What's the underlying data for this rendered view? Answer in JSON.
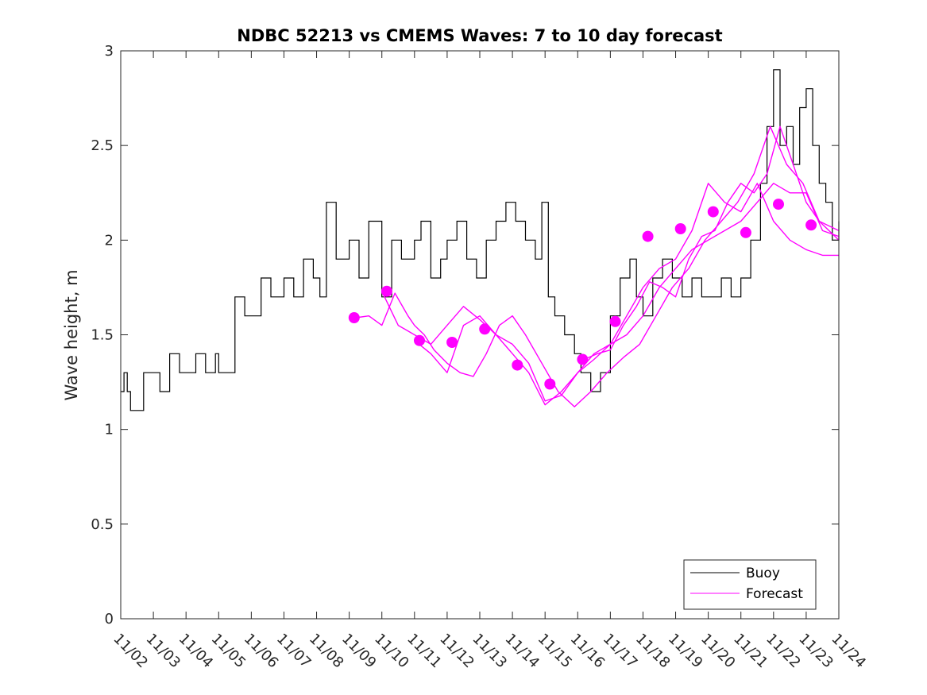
{
  "chart_data": {
    "type": "line",
    "title": "NDBC 52213 vs CMEMS Waves: 7 to 10 day forecast",
    "xlabel": "",
    "ylabel": "Wave height, m",
    "xlim": [
      0,
      22
    ],
    "ylim": [
      0,
      3
    ],
    "grid": false,
    "legend_position": "bottom-right",
    "x_tick_labels": [
      "11/02",
      "11/03",
      "11/04",
      "11/05",
      "11/06",
      "11/07",
      "11/08",
      "11/09",
      "11/10",
      "11/11",
      "11/12",
      "11/13",
      "11/14",
      "11/15",
      "11/16",
      "11/17",
      "11/18",
      "11/19",
      "11/20",
      "11/21",
      "11/22",
      "11/23",
      "11/24"
    ],
    "y_ticks": [
      0,
      0.5,
      1,
      1.5,
      2,
      2.5,
      3
    ],
    "y_tick_labels": [
      "0",
      "0.5",
      "1",
      "1.5",
      "2",
      "2.5",
      "3"
    ],
    "colors": {
      "buoy": "#000000",
      "forecast": "#ff00ff"
    },
    "series": [
      {
        "name": "Buoy",
        "color": "#000000",
        "x": [
          0,
          0.1,
          0.2,
          0.3,
          0.5,
          0.7,
          1.0,
          1.2,
          1.5,
          1.8,
          2.0,
          2.3,
          2.6,
          2.9,
          3.0,
          3.2,
          3.5,
          3.8,
          4.0,
          4.3,
          4.6,
          5.0,
          5.3,
          5.6,
          5.9,
          6.1,
          6.3,
          6.6,
          7.0,
          7.3,
          7.6,
          8.0,
          8.3,
          8.6,
          9.0,
          9.2,
          9.5,
          9.8,
          10.0,
          10.3,
          10.6,
          10.9,
          11.2,
          11.5,
          11.8,
          12.1,
          12.4,
          12.7,
          12.9,
          13.1,
          13.3,
          13.6,
          13.9,
          14.1,
          14.4,
          14.7,
          14.9,
          15.0,
          15.3,
          15.6,
          15.8,
          16.0,
          16.3,
          16.6,
          16.9,
          17.2,
          17.5,
          17.8,
          18.1,
          18.4,
          18.7,
          19.0,
          19.3,
          19.6,
          19.8,
          20.0,
          20.2,
          20.4,
          20.6,
          20.8,
          21.0,
          21.2,
          21.4,
          21.6,
          21.8,
          22.0
        ],
        "values": [
          1.2,
          1.3,
          1.2,
          1.1,
          1.1,
          1.3,
          1.3,
          1.2,
          1.4,
          1.3,
          1.3,
          1.4,
          1.3,
          1.4,
          1.3,
          1.3,
          1.7,
          1.6,
          1.6,
          1.8,
          1.7,
          1.8,
          1.7,
          1.9,
          1.8,
          1.7,
          2.2,
          1.9,
          2.0,
          1.8,
          2.1,
          1.7,
          2.0,
          1.9,
          2.0,
          2.1,
          1.8,
          1.9,
          2.0,
          2.1,
          1.9,
          1.8,
          2.0,
          2.1,
          2.2,
          2.1,
          2.0,
          1.9,
          2.2,
          1.7,
          1.6,
          1.5,
          1.4,
          1.3,
          1.2,
          1.3,
          1.3,
          1.6,
          1.8,
          1.9,
          1.7,
          1.6,
          1.8,
          1.9,
          1.8,
          1.7,
          1.8,
          1.7,
          1.7,
          1.8,
          1.7,
          1.8,
          2.0,
          2.3,
          2.6,
          2.9,
          2.5,
          2.6,
          2.4,
          2.7,
          2.8,
          2.5,
          2.3,
          2.2,
          2.0,
          2.1
        ]
      },
      {
        "name": "Forecast",
        "color": "#ff00ff",
        "runs": [
          {
            "x": [
              7.2,
              7.6,
              8.0,
              8.4,
              8.8,
              9.0,
              9.3,
              9.6,
              10.0,
              10.4,
              10.8,
              11.2,
              11.6,
              12.0,
              12.4,
              12.9,
              13.4,
              13.9,
              14.4,
              14.9,
              15.4,
              15.9,
              16.4,
              16.9,
              17.4,
              17.9,
              18.4,
              18.9,
              19.4,
              19.9,
              20.4,
              20.9,
              21.4,
              22.0
            ],
            "values": [
              1.59,
              1.6,
              1.55,
              1.72,
              1.6,
              1.55,
              1.5,
              1.42,
              1.35,
              1.3,
              1.28,
              1.4,
              1.55,
              1.6,
              1.5,
              1.35,
              1.2,
              1.12,
              1.2,
              1.3,
              1.38,
              1.45,
              1.6,
              1.75,
              1.85,
              2.0,
              2.1,
              2.2,
              2.35,
              2.6,
              2.4,
              2.3,
              2.1,
              2.0
            ]
          },
          {
            "x": [
              8.0,
              8.5,
              9.0,
              9.5,
              10.0,
              10.5,
              11.0,
              11.5,
              12.0,
              12.5,
              13.0,
              13.5,
              14.0,
              14.5,
              15.0,
              15.5,
              16.0,
              16.5,
              17.0,
              17.5,
              18.0,
              18.5,
              19.0,
              19.5,
              20.0,
              20.5,
              21.0,
              21.5,
              22.0
            ],
            "values": [
              1.73,
              1.55,
              1.5,
              1.45,
              1.55,
              1.65,
              1.58,
              1.5,
              1.45,
              1.35,
              1.15,
              1.18,
              1.3,
              1.4,
              1.45,
              1.5,
              1.6,
              1.75,
              1.85,
              1.95,
              2.0,
              2.05,
              2.1,
              2.2,
              2.3,
              2.25,
              2.25,
              2.05,
              2.02
            ]
          },
          {
            "x": [
              9.0,
              9.5,
              10.0,
              10.5,
              11.0,
              11.5,
              12.0,
              12.5,
              13.0,
              13.5,
              14.0,
              14.5,
              15.0,
              15.5,
              16.0,
              16.5,
              17.0,
              17.5,
              18.0,
              18.5,
              19.0,
              19.5,
              20.0,
              20.5,
              21.0,
              21.5,
              22.0
            ],
            "values": [
              1.47,
              1.4,
              1.3,
              1.55,
              1.6,
              1.5,
              1.4,
              1.3,
              1.13,
              1.2,
              1.3,
              1.37,
              1.45,
              1.6,
              1.75,
              1.85,
              1.9,
              2.05,
              2.3,
              2.2,
              2.15,
              2.3,
              2.1,
              2.0,
              1.95,
              1.92,
              1.92
            ]
          },
          {
            "x": [
              14.2,
              14.6,
              15.0,
              15.4,
              15.8,
              16.2,
              16.6,
              17.0,
              17.4,
              17.8,
              18.2,
              18.6,
              19.0,
              19.4,
              19.8,
              20.2,
              20.6,
              21.0,
              21.4,
              22.0
            ],
            "values": [
              1.37,
              1.4,
              1.42,
              1.55,
              1.65,
              1.78,
              1.75,
              1.7,
              1.9,
              2.02,
              2.05,
              2.2,
              2.3,
              2.25,
              2.35,
              2.6,
              2.4,
              2.2,
              2.1,
              2.05
            ]
          }
        ],
        "run_start_points": [
          {
            "x": 7.15,
            "value": 1.59
          },
          {
            "x": 8.15,
            "value": 1.73
          },
          {
            "x": 9.15,
            "value": 1.47
          },
          {
            "x": 10.15,
            "value": 1.46
          },
          {
            "x": 11.15,
            "value": 1.53
          },
          {
            "x": 12.15,
            "value": 1.34
          },
          {
            "x": 13.15,
            "value": 1.24
          },
          {
            "x": 14.15,
            "value": 1.37
          },
          {
            "x": 15.15,
            "value": 1.57
          },
          {
            "x": 16.15,
            "value": 2.02
          },
          {
            "x": 17.15,
            "value": 2.06
          },
          {
            "x": 18.15,
            "value": 2.15
          },
          {
            "x": 19.15,
            "value": 2.04
          },
          {
            "x": 20.15,
            "value": 2.19
          },
          {
            "x": 21.15,
            "value": 2.08
          }
        ]
      }
    ],
    "legend": [
      "Buoy",
      "Forecast"
    ]
  }
}
